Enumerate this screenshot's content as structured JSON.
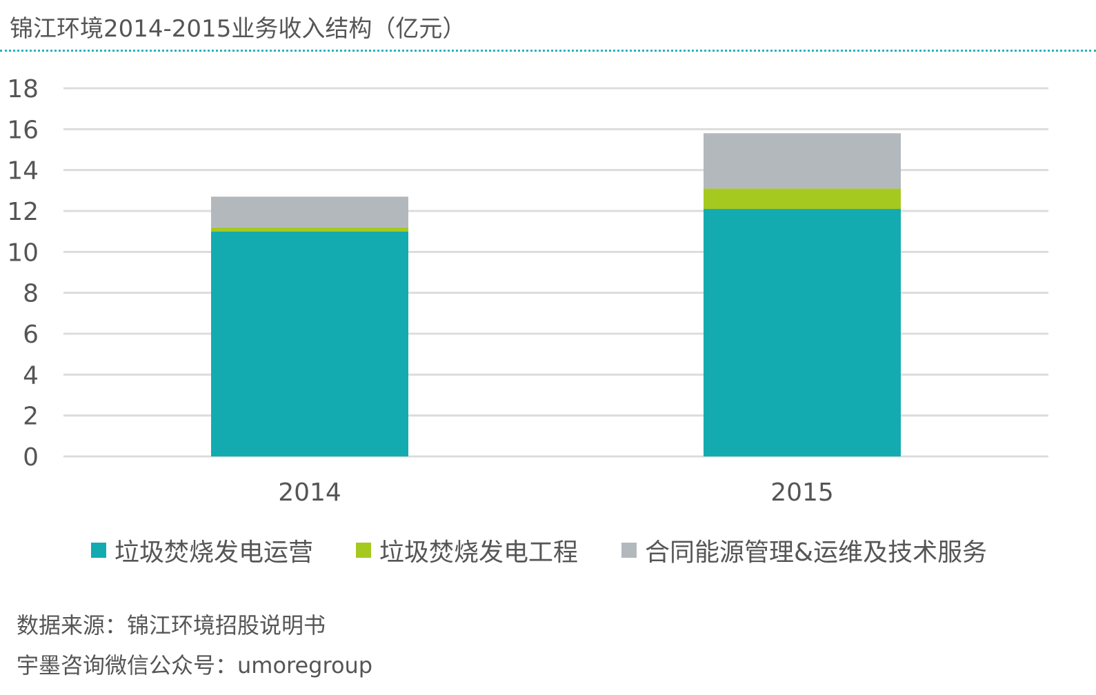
{
  "title": "锦江环境2014-2015业务收入结构（亿元）",
  "chart_data": {
    "type": "bar",
    "stacked": true,
    "title": "锦江环境2014-2015业务收入结构（亿元）",
    "xlabel": "",
    "ylabel": "",
    "ylim": [
      0,
      18
    ],
    "yticks": [
      0,
      2,
      4,
      6,
      8,
      10,
      12,
      14,
      16,
      18
    ],
    "categories": [
      "2014",
      "2015"
    ],
    "grid": true,
    "legend_position": "bottom",
    "series": [
      {
        "name": "垃圾焚烧发电运营",
        "color": "#13abb0",
        "values": [
          11.0,
          12.1
        ]
      },
      {
        "name": "垃圾焚烧发电工程",
        "color": "#a6c920",
        "values": [
          0.2,
          1.0
        ]
      },
      {
        "name": "合同能源管理&运维及技术服务",
        "color": "#b3b8bd",
        "values": [
          1.5,
          2.7
        ]
      }
    ]
  },
  "footer": {
    "source": "数据来源：锦江环境招股说明书",
    "wechat": "宇墨咨询微信公众号：umoregroup"
  }
}
